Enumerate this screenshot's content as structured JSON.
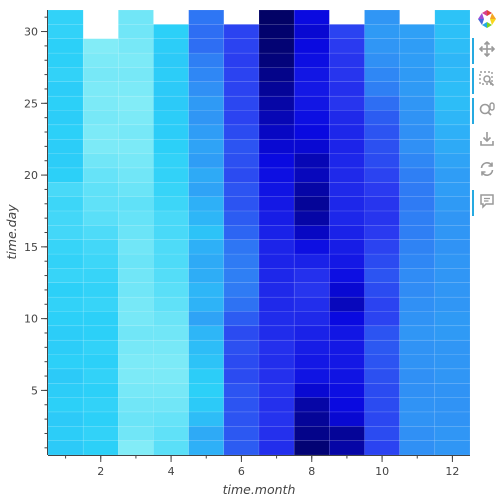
{
  "chart_data": {
    "type": "heatmap",
    "xlabel": "time.month",
    "ylabel": "time.day",
    "x_ticks": [
      2,
      4,
      6,
      8,
      10,
      12
    ],
    "y_ticks": [
      5,
      10,
      15,
      20,
      25,
      30
    ],
    "xlim": [
      0.5,
      12.5
    ],
    "ylim": [
      0.5,
      31.5
    ],
    "grid": false,
    "colormap": [
      "#000050",
      "#0a0ae0",
      "#2a3af0",
      "#3090f5",
      "#2cd0f8",
      "#9ff5f7"
    ],
    "color_range": [
      0,
      1
    ],
    "months": [
      1,
      2,
      3,
      4,
      5,
      6,
      7,
      8,
      9,
      10,
      11,
      12
    ],
    "days": [
      1,
      2,
      3,
      4,
      5,
      6,
      7,
      8,
      9,
      10,
      11,
      12,
      13,
      14,
      15,
      16,
      17,
      18,
      19,
      20,
      21,
      22,
      23,
      24,
      25,
      26,
      27,
      28,
      29,
      30,
      31
    ],
    "columns": [
      {
        "month": 1,
        "values": [
          0.78,
          0.79,
          0.78,
          0.8,
          0.79,
          0.78,
          0.8,
          0.79,
          0.79,
          0.8,
          0.81,
          0.8,
          0.82,
          0.81,
          0.82,
          0.84,
          0.84,
          0.83,
          0.85,
          0.8,
          0.79,
          0.79,
          0.8,
          0.79,
          0.8,
          0.79,
          0.81,
          0.8,
          0.8,
          0.81,
          0.81
        ]
      },
      {
        "month": 2,
        "values": [
          0.8,
          0.81,
          0.8,
          0.81,
          0.8,
          0.81,
          0.8,
          0.81,
          0.8,
          0.8,
          0.82,
          0.81,
          0.82,
          0.83,
          0.84,
          0.86,
          0.88,
          0.89,
          0.89,
          0.9,
          0.92,
          0.94,
          0.94,
          0.93,
          0.94,
          0.94,
          0.93,
          0.94,
          0.95,
          null,
          null
        ]
      },
      {
        "month": 3,
        "values": [
          0.95,
          0.92,
          0.91,
          0.92,
          0.93,
          0.94,
          0.94,
          0.93,
          0.92,
          0.93,
          0.93,
          0.92,
          0.92,
          0.91,
          0.92,
          0.91,
          0.9,
          0.89,
          0.91,
          0.92,
          0.93,
          0.94,
          0.93,
          0.94,
          0.95,
          0.94,
          0.93,
          0.94,
          0.93,
          0.92,
          0.92
        ]
      },
      {
        "month": 4,
        "values": [
          0.88,
          0.89,
          0.9,
          0.92,
          0.93,
          0.94,
          0.94,
          0.93,
          0.92,
          0.91,
          0.89,
          0.88,
          0.87,
          0.86,
          0.86,
          0.85,
          0.85,
          0.83,
          0.82,
          0.81,
          0.81,
          0.8,
          0.79,
          0.79,
          0.78,
          0.78,
          0.79,
          0.78,
          0.79,
          0.8,
          null
        ]
      },
      {
        "month": 5,
        "values": [
          0.7,
          0.68,
          0.74,
          0.78,
          0.8,
          0.79,
          0.76,
          0.74,
          0.72,
          0.66,
          0.71,
          0.72,
          0.69,
          0.68,
          0.7,
          0.76,
          0.72,
          0.7,
          0.66,
          0.68,
          0.64,
          0.66,
          0.64,
          0.62,
          0.63,
          0.6,
          0.58,
          0.56,
          0.52,
          0.52,
          0.54
        ]
      },
      {
        "month": 6,
        "values": [
          0.48,
          0.47,
          0.46,
          0.46,
          0.46,
          0.44,
          0.44,
          0.45,
          0.44,
          0.48,
          0.53,
          0.55,
          0.56,
          0.55,
          0.54,
          0.5,
          0.48,
          0.46,
          0.46,
          0.44,
          0.45,
          0.46,
          0.44,
          0.42,
          0.43,
          0.42,
          0.42,
          0.41,
          0.42,
          0.42,
          null
        ]
      },
      {
        "month": 7,
        "values": [
          0.35,
          0.36,
          0.37,
          0.36,
          0.37,
          0.36,
          0.35,
          0.36,
          0.34,
          0.34,
          0.33,
          0.33,
          0.32,
          0.31,
          0.31,
          0.3,
          0.28,
          0.26,
          0.24,
          0.22,
          0.2,
          0.18,
          0.16,
          0.14,
          0.12,
          0.1,
          0.08,
          0.06,
          0.05,
          0.04,
          0.03
        ]
      },
      {
        "month": 8,
        "values": [
          0.05,
          0.08,
          0.1,
          0.12,
          0.18,
          0.24,
          0.26,
          0.28,
          0.3,
          0.33,
          0.35,
          0.38,
          0.36,
          0.3,
          0.22,
          0.16,
          0.12,
          0.1,
          0.12,
          0.15,
          0.14,
          0.18,
          0.2,
          0.22,
          0.25,
          0.26,
          0.25,
          0.22,
          0.2,
          0.18,
          0.2
        ]
      },
      {
        "month": 9,
        "values": [
          0.12,
          0.1,
          0.18,
          0.2,
          0.22,
          0.24,
          0.26,
          0.26,
          0.25,
          0.2,
          0.15,
          0.18,
          0.22,
          0.26,
          0.28,
          0.3,
          0.32,
          0.32,
          0.33,
          0.33,
          0.32,
          0.31,
          0.32,
          0.33,
          0.38,
          0.36,
          0.38,
          0.38,
          0.4,
          0.42,
          null
        ]
      },
      {
        "month": 10,
        "values": [
          0.42,
          0.44,
          0.43,
          0.44,
          0.44,
          0.45,
          0.46,
          0.47,
          0.46,
          0.42,
          0.42,
          0.44,
          0.46,
          0.44,
          0.42,
          0.4,
          0.38,
          0.38,
          0.4,
          0.42,
          0.44,
          0.45,
          0.46,
          0.48,
          0.52,
          0.56,
          0.58,
          0.6,
          0.62,
          0.63,
          0.62
        ]
      },
      {
        "month": 11,
        "values": [
          0.6,
          0.6,
          0.61,
          0.61,
          0.6,
          0.6,
          0.61,
          0.61,
          0.62,
          0.61,
          0.6,
          0.59,
          0.59,
          0.58,
          0.57,
          0.56,
          0.56,
          0.55,
          0.55,
          0.56,
          0.58,
          0.6,
          0.6,
          0.61,
          0.62,
          0.63,
          0.63,
          0.64,
          0.64,
          0.65,
          null
        ]
      },
      {
        "month": 12,
        "values": [
          0.62,
          0.62,
          0.61,
          0.61,
          0.61,
          0.62,
          0.62,
          0.62,
          0.63,
          0.63,
          0.62,
          0.62,
          0.62,
          0.62,
          0.61,
          0.62,
          0.62,
          0.63,
          0.64,
          0.64,
          0.66,
          0.68,
          0.7,
          0.72,
          0.74,
          0.74,
          0.73,
          0.72,
          0.74,
          0.75,
          0.76
        ]
      }
    ]
  },
  "toolbar": {
    "tools": [
      {
        "name": "logo-icon",
        "active": false
      },
      {
        "name": "pan-icon",
        "active": true
      },
      {
        "name": "box-zoom-icon",
        "active": true
      },
      {
        "name": "wheel-zoom-icon",
        "active": true
      },
      {
        "name": "save-icon",
        "active": false
      },
      {
        "name": "reset-icon",
        "active": false
      },
      {
        "name": "hover-icon",
        "active": true
      }
    ]
  }
}
